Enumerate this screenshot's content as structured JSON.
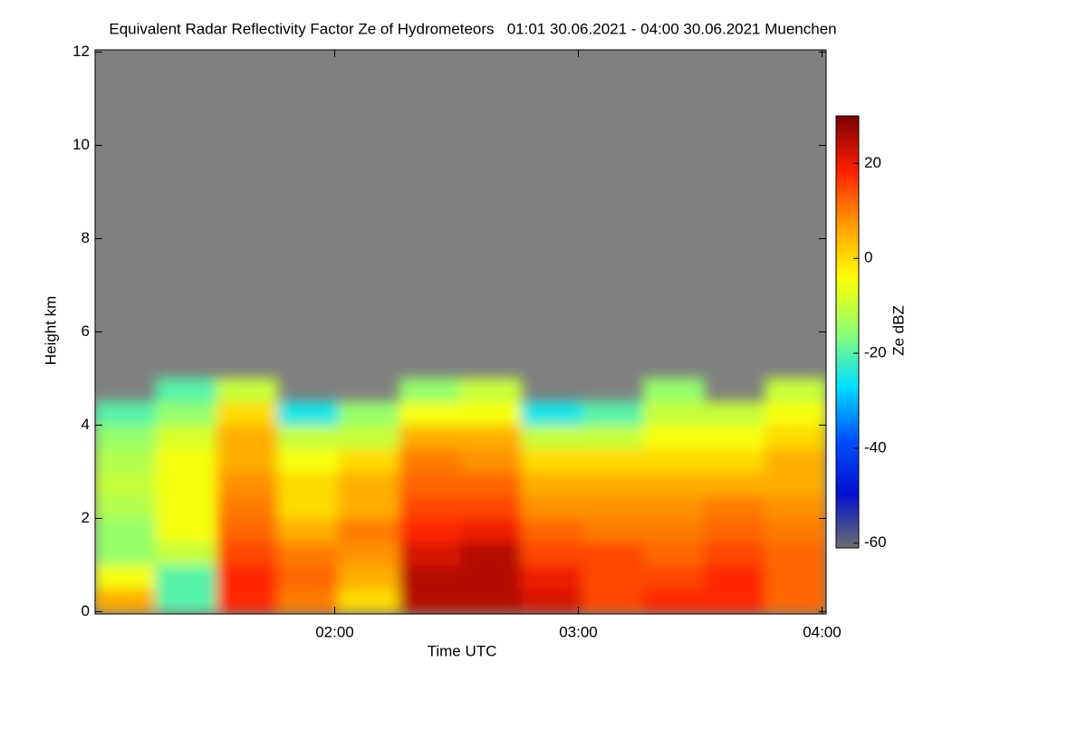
{
  "chart_data": {
    "type": "heatmap",
    "title": "Equivalent Radar Reflectivity Factor Ze of Hydrometeors   01:01 30.06.2021 - 04:00 30.06.2021 Muenchen",
    "xlabel": "Time UTC",
    "ylabel": "Height km",
    "colorbar_label": "Ze dBZ",
    "xlim": [
      1.0167,
      4.0167
    ],
    "xticks": [
      {
        "value": 2,
        "label": "02:00"
      },
      {
        "value": 3,
        "label": "03:00"
      },
      {
        "value": 4,
        "label": "04:00"
      }
    ],
    "ylim": [
      -0.05,
      12.05
    ],
    "yticks": [
      0,
      2,
      4,
      6,
      8,
      10,
      12
    ],
    "clim": [
      -61,
      30
    ],
    "cticks": [
      -60,
      -40,
      -20,
      0,
      20
    ],
    "colormap": [
      "#6e6e6e",
      "#0010d0",
      "#0050ff",
      "#00e0ff",
      "#90ff70",
      "#ffff00",
      "#ff9a00",
      "#ff1e00",
      "#7a0000"
    ],
    "background": "#808080",
    "x_edges": [
      1.0167,
      1.2667,
      1.5167,
      1.7667,
      2.0167,
      2.2667,
      2.5167,
      2.7667,
      3.0167,
      3.2667,
      3.5167,
      3.7667,
      4.0167
    ],
    "y_edges": [
      0,
      0.5,
      1,
      1.5,
      2,
      2.5,
      3,
      3.5,
      4,
      4.5,
      5
    ],
    "z": [
      [
        5,
        -5,
        -15,
        -15,
        -12,
        -10,
        -12,
        -15,
        -20,
        null
      ],
      [
        -20,
        -20,
        -10,
        -5,
        -5,
        -5,
        -5,
        -8,
        -15,
        -20
      ],
      [
        18,
        18,
        15,
        12,
        10,
        8,
        5,
        5,
        0,
        -10
      ],
      [
        10,
        12,
        10,
        5,
        0,
        0,
        -5,
        -10,
        -25,
        null
      ],
      [
        0,
        5,
        8,
        10,
        5,
        5,
        0,
        -10,
        -15,
        null
      ],
      [
        25,
        25,
        22,
        18,
        15,
        12,
        10,
        5,
        -5,
        -15
      ],
      [
        25,
        25,
        25,
        20,
        15,
        12,
        8,
        5,
        -5,
        -10
      ],
      [
        22,
        20,
        15,
        12,
        8,
        5,
        0,
        -10,
        -25,
        null
      ],
      [
        15,
        15,
        15,
        10,
        8,
        5,
        0,
        -10,
        -20,
        null
      ],
      [
        18,
        15,
        12,
        10,
        8,
        5,
        0,
        -5,
        -10,
        -15
      ],
      [
        18,
        18,
        15,
        12,
        10,
        5,
        0,
        -5,
        -10,
        null
      ],
      [
        12,
        12,
        12,
        10,
        8,
        5,
        5,
        0,
        -5,
        -10
      ]
    ]
  }
}
